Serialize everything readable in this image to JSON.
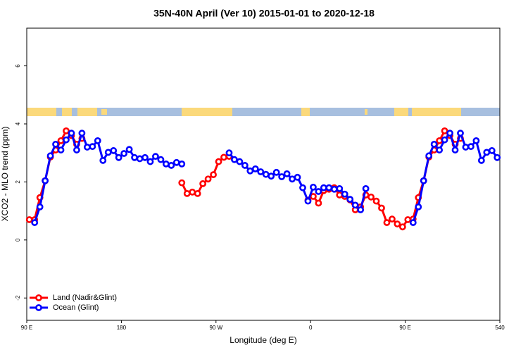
{
  "chart_data": {
    "type": "line",
    "title": "35N-40N April (Ver 10)   2015-01-01 to 2020-12-18",
    "x_label": "Longitude (deg E)",
    "y_label": "XCO2 - MLO trend (ppm)",
    "x": [
      92.5,
      97.5,
      102.5,
      107.5,
      112.5,
      117.5,
      122.5,
      127.5,
      132.5,
      137.5,
      142.5,
      147.5,
      152.5,
      157.5,
      162.5,
      167.5,
      172.5,
      177.5,
      182.5,
      187.5,
      192.5,
      197.5,
      202.5,
      207.5,
      212.5,
      217.5,
      222.5,
      227.5,
      232.5,
      237.5,
      242.5,
      247.5,
      252.5,
      257.5,
      262.5,
      267.5,
      272.5,
      277.5,
      282.5,
      287.5,
      292.5,
      297.5,
      302.5,
      307.5,
      312.5,
      317.5,
      322.5,
      327.5,
      332.5,
      337.5,
      342.5,
      347.5,
      352.5,
      357.5,
      362.5,
      367.5,
      372.5,
      377.5,
      382.5,
      387.5,
      392.5,
      397.5,
      402.5,
      407.5,
      412.5,
      417.5,
      422.5,
      427.5,
      432.5,
      437.5,
      442.5,
      447.5,
      452.5,
      457.5,
      462.5,
      467.5,
      472.5,
      477.5,
      482.5,
      487.5,
      492.5,
      497.5,
      502.5,
      507.5,
      512.5,
      517.5,
      522.5,
      527.5,
      532.5,
      537.5
    ],
    "series": [
      {
        "name": "Land (Nadir&Glint)",
        "color": "#ff0000",
        "values": [
          0.7,
          0.7,
          1.46,
          2.04,
          2.86,
          3.1,
          3.42,
          3.76,
          3.6,
          3.3,
          3.5,
          null,
          null,
          null,
          null,
          null,
          null,
          null,
          null,
          null,
          null,
          null,
          null,
          null,
          null,
          null,
          null,
          null,
          null,
          1.97,
          1.6,
          1.65,
          1.6,
          1.94,
          2.1,
          2.25,
          2.7,
          2.85,
          2.88,
          null,
          null,
          null,
          null,
          null,
          null,
          null,
          null,
          null,
          null,
          null,
          null,
          null,
          null,
          1.37,
          1.5,
          1.27,
          1.7,
          1.75,
          1.8,
          1.55,
          1.5,
          1.38,
          1.04,
          1.14,
          1.55,
          1.48,
          1.34,
          1.1,
          0.6,
          0.72,
          0.55,
          0.45,
          0.7,
          0.72,
          1.46,
          2.04,
          2.86,
          3.1,
          3.42,
          3.76,
          3.6,
          3.3,
          3.5,
          null,
          null,
          null,
          null,
          null,
          null,
          null
        ]
      },
      {
        "name": "Ocean (Glint)",
        "color": "#0000ff",
        "values": [
          null,
          0.6,
          1.14,
          2.04,
          2.9,
          3.3,
          3.1,
          3.45,
          3.68,
          3.1,
          3.68,
          3.2,
          3.22,
          3.42,
          2.74,
          3.02,
          3.08,
          2.84,
          2.98,
          3.12,
          2.84,
          2.8,
          2.84,
          2.7,
          2.88,
          2.77,
          2.62,
          2.57,
          2.67,
          2.62,
          null,
          null,
          null,
          null,
          null,
          null,
          null,
          null,
          3.0,
          2.77,
          2.7,
          2.57,
          2.38,
          2.45,
          2.35,
          2.26,
          2.2,
          2.33,
          2.18,
          2.28,
          2.1,
          2.16,
          1.8,
          1.34,
          1.82,
          1.67,
          1.8,
          1.8,
          1.75,
          1.77,
          1.58,
          1.4,
          1.2,
          1.04,
          1.77,
          null,
          null,
          null,
          null,
          null,
          null,
          null,
          null,
          0.6,
          1.14,
          2.04,
          2.9,
          3.3,
          3.1,
          3.45,
          3.68,
          3.1,
          3.68,
          3.2,
          3.22,
          3.42,
          2.74,
          3.02,
          3.08,
          2.84
        ]
      }
    ],
    "xlim": [
      90,
      540
    ],
    "xticks": [
      {
        "value": 90,
        "label": "90 E"
      },
      180,
      {
        "value": 270,
        "label": "90 W"
      },
      {
        "value": 360,
        "label": "0"
      },
      {
        "value": 450,
        "label": "90 E"
      },
      540
    ],
    "ylim": [
      -2.77,
      7.3
    ],
    "yticks": [
      -2,
      0,
      2,
      4,
      6
    ],
    "legend": "bottom-left"
  }
}
